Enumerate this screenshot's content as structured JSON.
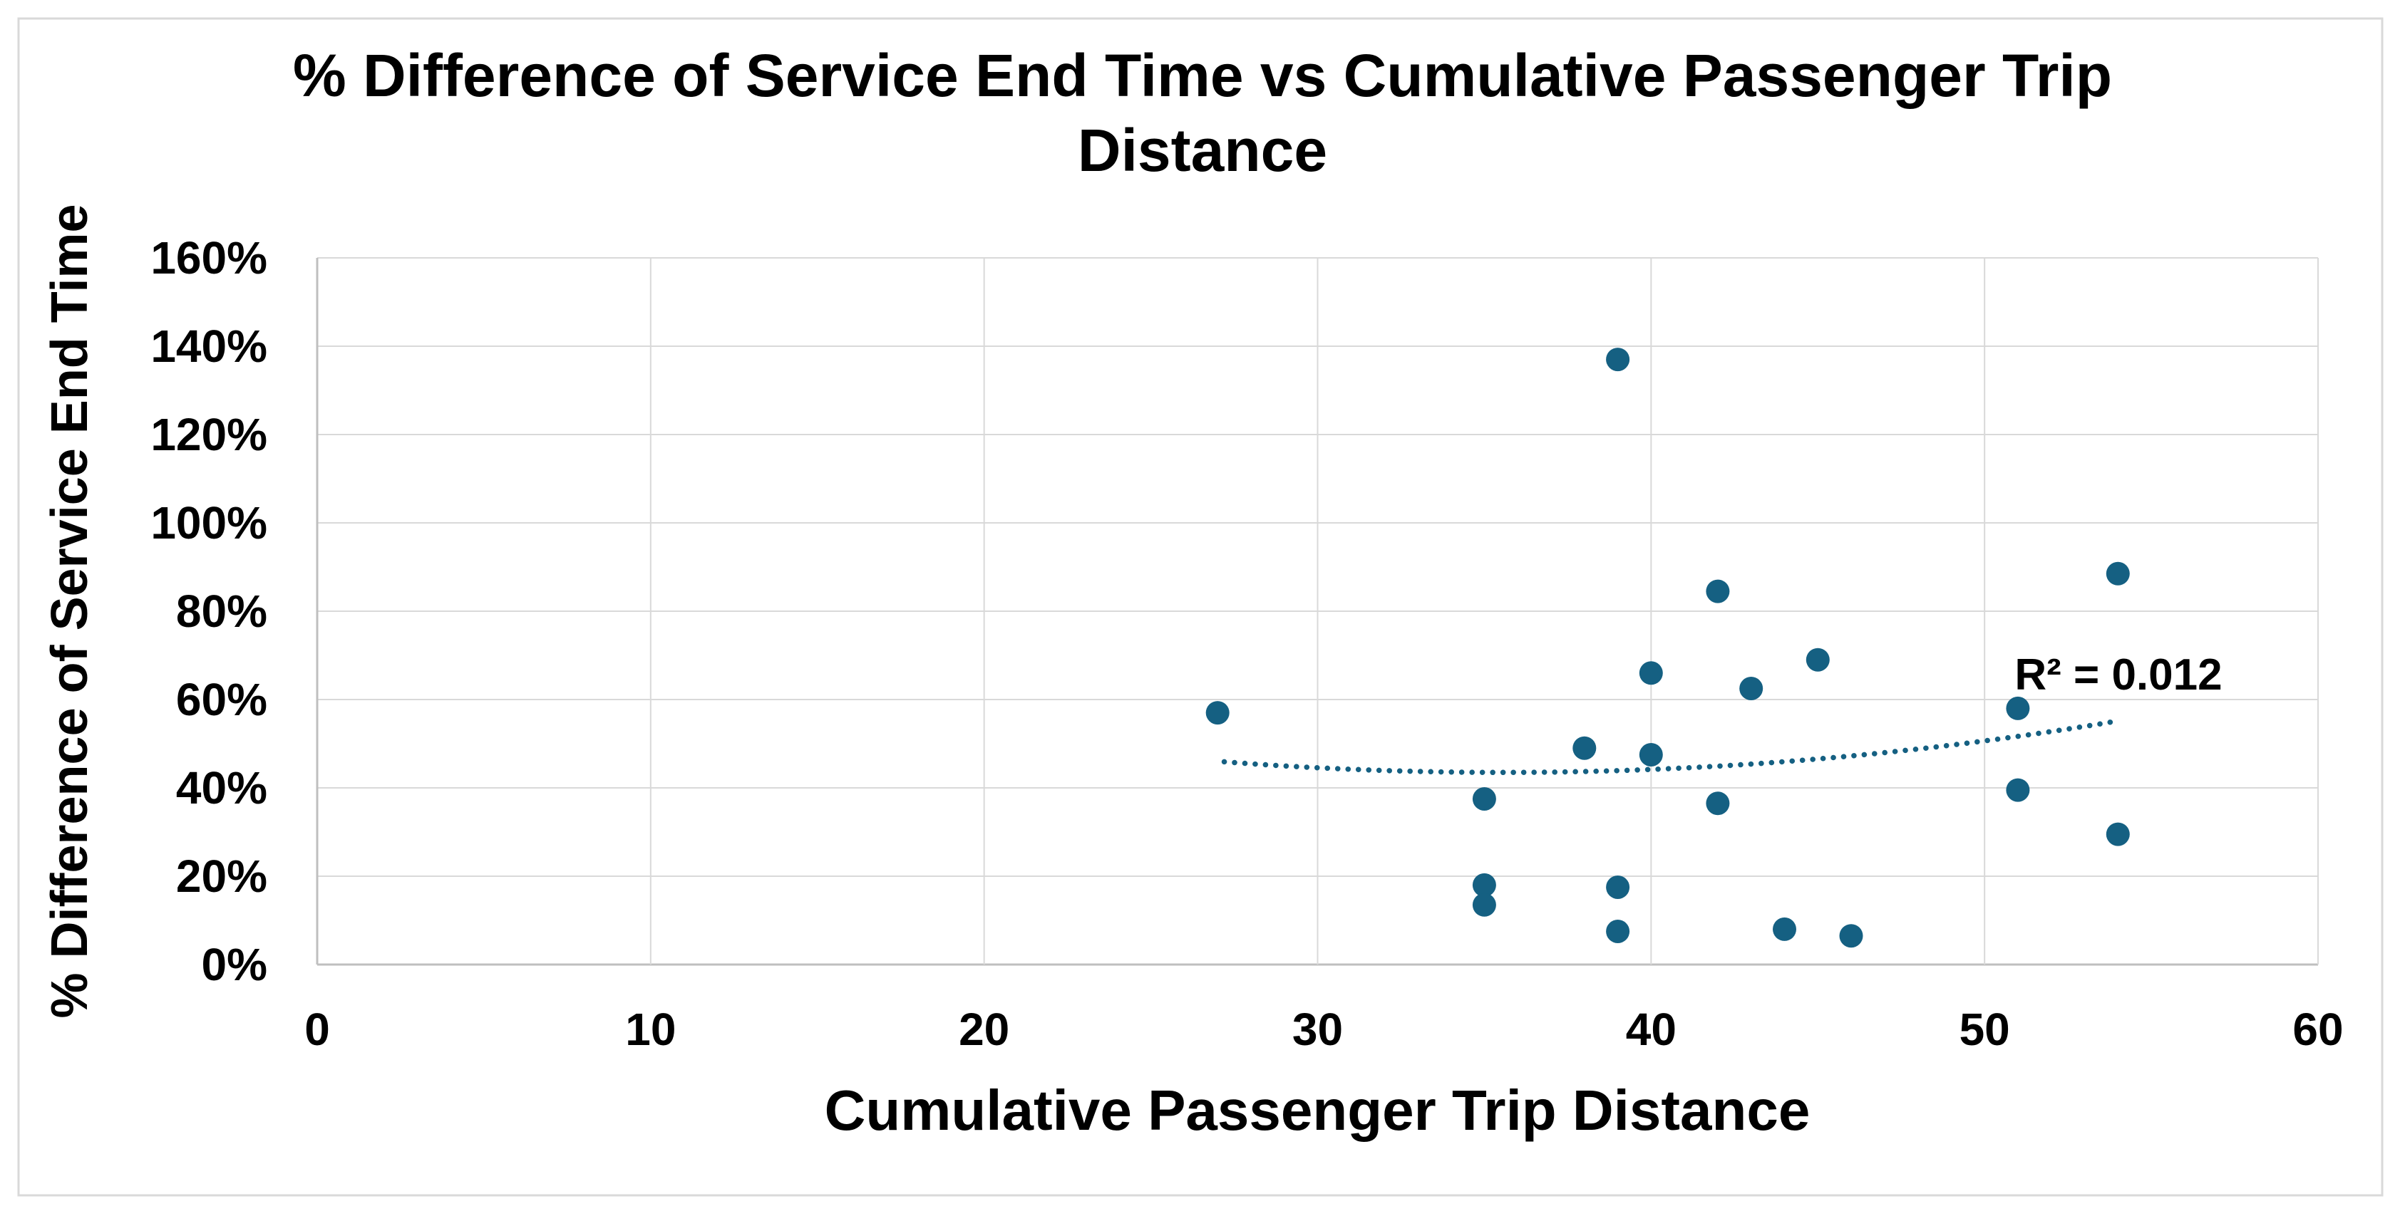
{
  "title": {
    "line1": "% Difference of Service End Time vs Cumulative Passenger Trip",
    "line2": "Distance"
  },
  "axes": {
    "x": {
      "label": "Cumulative Passenger Trip Distance",
      "ticks": [
        "0",
        "10",
        "20",
        "30",
        "40",
        "50",
        "60"
      ]
    },
    "y": {
      "label": "% Difference of Service End Time",
      "ticks": [
        "0%",
        "20%",
        "40%",
        "60%",
        "80%",
        "100%",
        "120%",
        "140%",
        "160%"
      ]
    }
  },
  "colors": {
    "marker": "#156082",
    "trendline": "#156082",
    "gridline": "#d9d9d9",
    "axis_line": "#bfbfbf",
    "border": "#d9d9d9",
    "text": "#000000",
    "background": "#ffffff"
  },
  "chart_data": {
    "type": "scatter",
    "title": "% Difference of Service End Time vs Cumulative Passenger Trip Distance",
    "xlabel": "Cumulative Passenger Trip Distance",
    "ylabel": "% Difference of Service End Time",
    "xlim": [
      0,
      60
    ],
    "ylim": [
      0,
      160
    ],
    "y_unit": "percent",
    "grid": true,
    "legend": "none",
    "points": [
      {
        "x": 27,
        "y": 57
      },
      {
        "x": 35,
        "y": 37.5
      },
      {
        "x": 35,
        "y": 18
      },
      {
        "x": 35,
        "y": 13.5
      },
      {
        "x": 38,
        "y": 49
      },
      {
        "x": 39,
        "y": 137
      },
      {
        "x": 39,
        "y": 17.5
      },
      {
        "x": 39,
        "y": 7.5
      },
      {
        "x": 40,
        "y": 66
      },
      {
        "x": 40,
        "y": 47.5
      },
      {
        "x": 42,
        "y": 84.5
      },
      {
        "x": 42,
        "y": 36.5
      },
      {
        "x": 43,
        "y": 62.5
      },
      {
        "x": 44,
        "y": 8
      },
      {
        "x": 45,
        "y": 69
      },
      {
        "x": 46,
        "y": 6.5
      },
      {
        "x": 51,
        "y": 58
      },
      {
        "x": 51,
        "y": 39.5
      },
      {
        "x": 54,
        "y": 88.5
      },
      {
        "x": 54,
        "y": 29.5
      }
    ],
    "trendline": {
      "type": "polynomial",
      "style": "dotted",
      "r2_label": "R² = 0.012",
      "anchors": [
        {
          "x": 27.2,
          "y": 45.9
        },
        {
          "x": 38.0,
          "y": 43.7
        },
        {
          "x": 53.8,
          "y": 54.9
        }
      ]
    }
  }
}
